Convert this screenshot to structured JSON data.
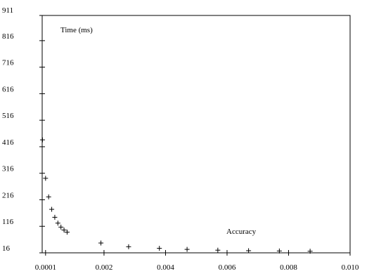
{
  "chart_data": {
    "type": "scatter",
    "title": "",
    "xlabel": "Accuracy",
    "ylabel": "Time (ms)",
    "xlim": [
      -1e-05,
      0.01
    ],
    "ylim": [
      16,
      911
    ],
    "x_ticks": [
      0.0001,
      0.002,
      0.004,
      0.006,
      0.008,
      0.01
    ],
    "x_tick_labels": [
      "0.0001",
      "0.002",
      "0.004",
      "0.006",
      "0.008",
      "0.010"
    ],
    "y_ticks": [
      16,
      116,
      216,
      316,
      416,
      516,
      616,
      716,
      816,
      911
    ],
    "y_tick_labels": [
      "16",
      "116",
      "216",
      "316",
      "416",
      "516",
      "616",
      "716",
      "816",
      "911"
    ],
    "grid": false,
    "marker": "+",
    "points": [
      {
        "x": 0.0,
        "y": 442
      },
      {
        "x": 0.0001,
        "y": 297
      },
      {
        "x": 0.0002,
        "y": 227
      },
      {
        "x": 0.0003,
        "y": 180
      },
      {
        "x": 0.0004,
        "y": 150
      },
      {
        "x": 0.0005,
        "y": 128
      },
      {
        "x": 0.0006,
        "y": 113
      },
      {
        "x": 0.0007,
        "y": 102
      },
      {
        "x": 0.0008,
        "y": 94
      },
      {
        "x": 0.0019,
        "y": 53
      },
      {
        "x": 0.0028,
        "y": 39
      },
      {
        "x": 0.0038,
        "y": 33
      },
      {
        "x": 0.0047,
        "y": 29
      },
      {
        "x": 0.0057,
        "y": 26
      },
      {
        "x": 0.0067,
        "y": 24
      },
      {
        "x": 0.0077,
        "y": 23
      },
      {
        "x": 0.0087,
        "y": 22
      }
    ]
  }
}
